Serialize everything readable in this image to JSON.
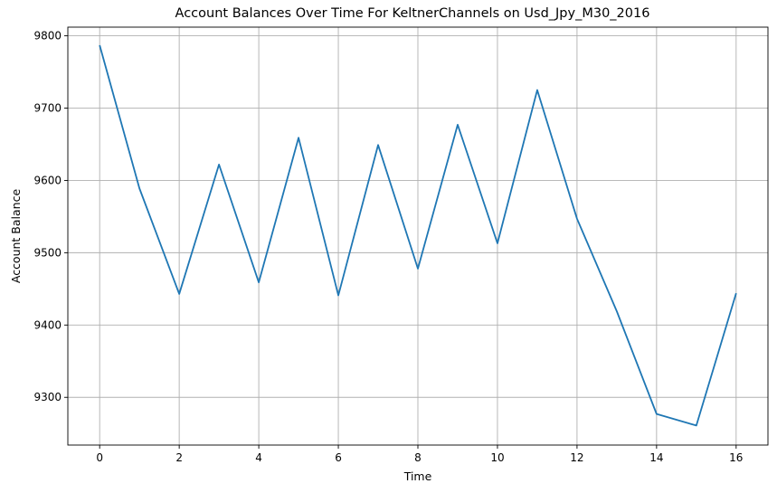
{
  "chart_data": {
    "type": "line",
    "title": "Account Balances Over Time For KeltnerChannels on Usd_Jpy_M30_2016",
    "xlabel": "Time",
    "ylabel": "Account Balance",
    "x": [
      0,
      1,
      2,
      3,
      4,
      5,
      6,
      7,
      8,
      9,
      10,
      11,
      12,
      13,
      14,
      15,
      16
    ],
    "series": [
      {
        "values": [
          9787,
          9589,
          9443,
          9622,
          9459,
          9659,
          9441,
          9649,
          9478,
          9677,
          9513,
          9725,
          9547,
          9419,
          9277,
          9261,
          9444
        ],
        "color": "#1f77b4"
      }
    ],
    "xlim": [
      -0.8,
      16.8
    ],
    "ylim": [
      9234,
      9812
    ],
    "xticks": [
      0,
      2,
      4,
      6,
      8,
      10,
      12,
      14,
      16
    ],
    "yticks": [
      9300,
      9400,
      9500,
      9600,
      9700,
      9800
    ],
    "grid": true
  }
}
